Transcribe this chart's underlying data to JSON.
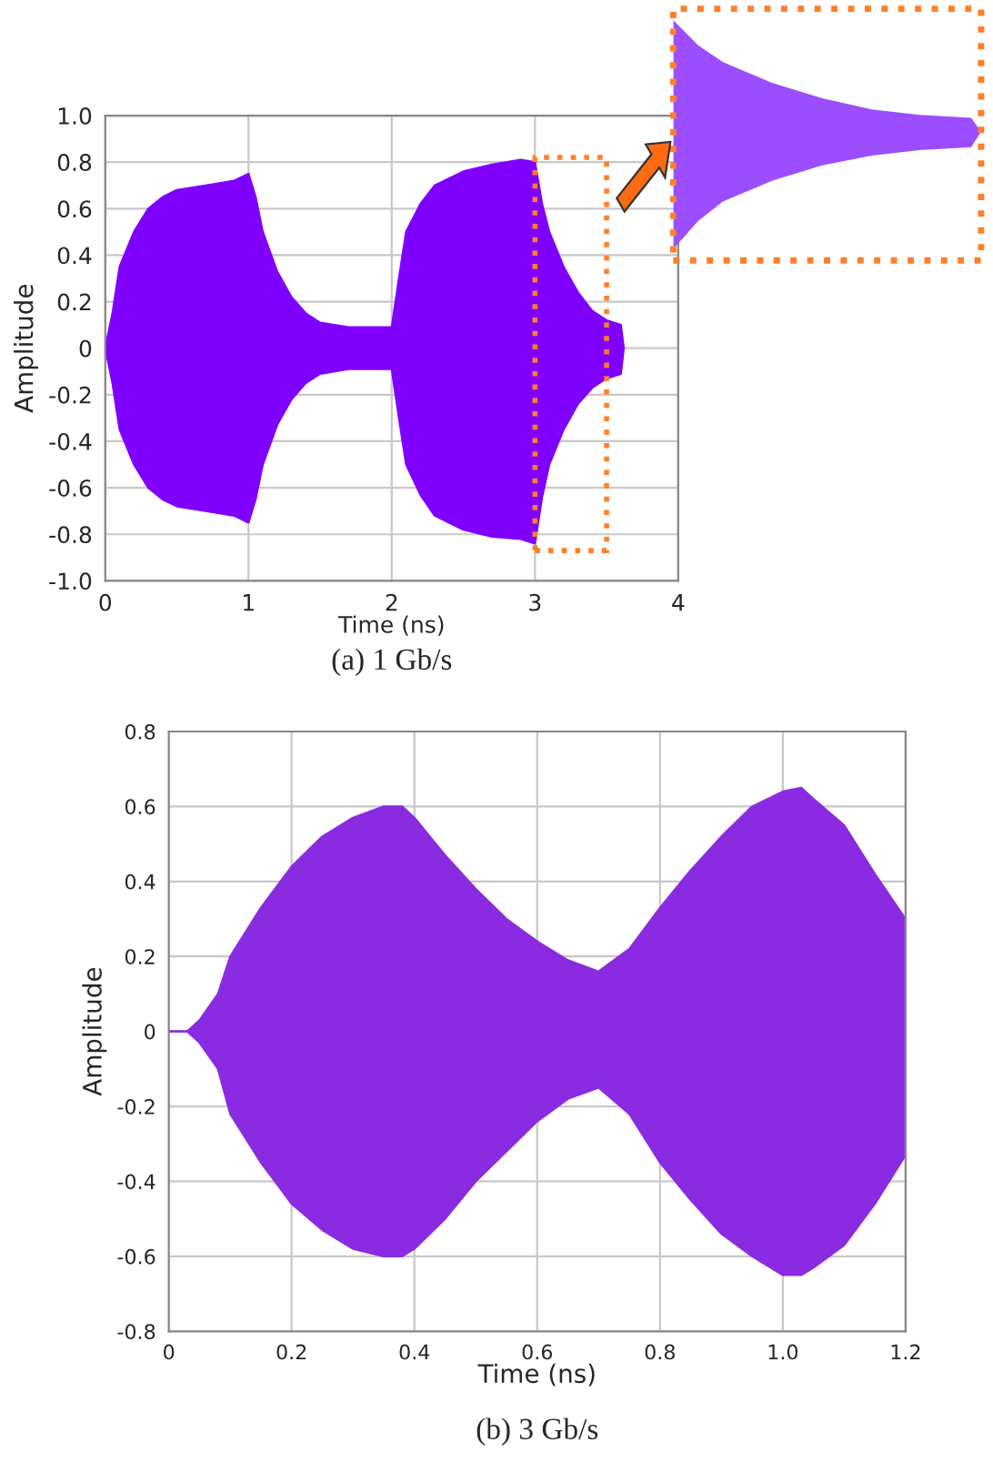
{
  "chart_data": [
    {
      "type": "area",
      "xlabel": "Time (ns)",
      "ylabel": "Amplitude",
      "xlim": [
        0,
        4
      ],
      "ylim": [
        -1.0,
        1.0
      ],
      "xticks": [
        0,
        1,
        2,
        3,
        4
      ],
      "yticks": [
        {
          "value": -1.0,
          "label": "-1.0"
        },
        {
          "value": -0.8,
          "label": "-0.8"
        },
        {
          "value": -0.6,
          "label": "-0.6"
        },
        {
          "value": -0.4,
          "label": "-0.4"
        },
        {
          "value": -0.2,
          "label": "-0.2"
        },
        0,
        0.2,
        0.4,
        0.6,
        0.8,
        {
          "value": 1.0,
          "label": "1.0"
        }
      ],
      "grid": true,
      "x": [
        0,
        0.05,
        0.1,
        0.2,
        0.3,
        0.4,
        0.5,
        0.7,
        0.9,
        1.0,
        1.05,
        1.1,
        1.2,
        1.3,
        1.4,
        1.5,
        1.7,
        2.0,
        2.05,
        2.1,
        2.2,
        2.3,
        2.5,
        2.7,
        2.9,
        3.0,
        3.05,
        3.1,
        3.2,
        3.3,
        3.4,
        3.5,
        3.6,
        3.62
      ],
      "series": [
        {
          "color": "#8000ff",
          "values": [
            0,
            0.15,
            0.35,
            0.5,
            0.6,
            0.65,
            0.68,
            0.7,
            0.72,
            0.75,
            0.65,
            0.5,
            0.33,
            0.22,
            0.15,
            0.11,
            0.09,
            0.09,
            0.3,
            0.5,
            0.62,
            0.7,
            0.76,
            0.79,
            0.81,
            0.8,
            0.62,
            0.5,
            0.35,
            0.24,
            0.16,
            0.12,
            0.1,
            0
          ]
        },
        {
          "color": "#8000ff",
          "values": [
            0,
            -0.15,
            -0.35,
            -0.5,
            -0.6,
            -0.65,
            -0.68,
            -0.7,
            -0.72,
            -0.75,
            -0.65,
            -0.5,
            -0.33,
            -0.22,
            -0.15,
            -0.11,
            -0.09,
            -0.09,
            -0.3,
            -0.5,
            -0.63,
            -0.72,
            -0.78,
            -0.81,
            -0.82,
            -0.84,
            -0.64,
            -0.5,
            -0.35,
            -0.24,
            -0.17,
            -0.13,
            -0.11,
            0
          ]
        }
      ],
      "annotations": [
        "(a) 1 Gb/s"
      ]
    },
    {
      "type": "area",
      "xlabel": "Time (ns)",
      "ylabel": "Amplitude",
      "xlim": [
        0,
        1.2
      ],
      "ylim": [
        -0.8,
        0.8
      ],
      "xticks": [
        0,
        0.2,
        0.4,
        0.6,
        0.8,
        {
          "value": 1.0,
          "label": "1.0"
        },
        1.2
      ],
      "yticks": [
        -0.8,
        -0.6,
        -0.4,
        -0.2,
        0,
        0.2,
        0.4,
        0.6,
        0.8
      ],
      "grid": true,
      "x": [
        0,
        0.03,
        0.05,
        0.08,
        0.1,
        0.15,
        0.2,
        0.25,
        0.3,
        0.35,
        0.38,
        0.4,
        0.45,
        0.5,
        0.55,
        0.6,
        0.65,
        0.7,
        0.75,
        0.8,
        0.85,
        0.9,
        0.95,
        1.0,
        1.03,
        1.05,
        1.1,
        1.15,
        1.2
      ],
      "series": [
        {
          "color": "#8a2be2",
          "values": [
            0,
            0,
            0.03,
            0.1,
            0.2,
            0.33,
            0.44,
            0.52,
            0.57,
            0.6,
            0.6,
            0.57,
            0.47,
            0.38,
            0.3,
            0.24,
            0.19,
            0.16,
            0.22,
            0.33,
            0.43,
            0.52,
            0.6,
            0.64,
            0.65,
            0.62,
            0.55,
            0.42,
            0.3
          ]
        },
        {
          "color": "#8a2be2",
          "values": [
            0,
            0,
            -0.03,
            -0.1,
            -0.22,
            -0.35,
            -0.46,
            -0.53,
            -0.58,
            -0.6,
            -0.6,
            -0.58,
            -0.5,
            -0.4,
            -0.32,
            -0.24,
            -0.18,
            -0.15,
            -0.22,
            -0.35,
            -0.45,
            -0.54,
            -0.6,
            -0.65,
            -0.65,
            -0.63,
            -0.57,
            -0.46,
            -0.33
          ]
        }
      ],
      "annotations": [
        "(b) 3 Gb/s"
      ]
    }
  ]
}
